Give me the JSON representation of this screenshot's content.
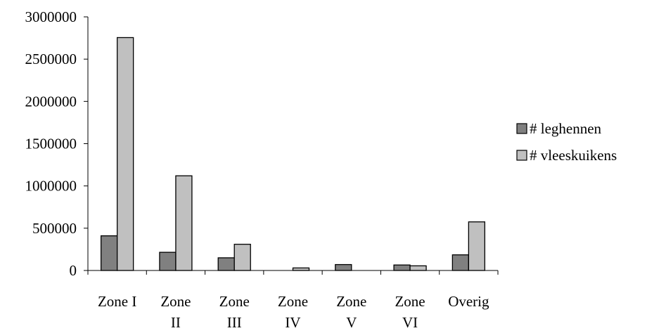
{
  "chart_data": {
    "type": "bar",
    "categories": [
      [
        "Zone I"
      ],
      [
        "Zone",
        "II"
      ],
      [
        "Zone",
        "III"
      ],
      [
        "Zone",
        "IV"
      ],
      [
        "Zone",
        "V"
      ],
      [
        "Zone",
        "VI"
      ],
      [
        "Overig"
      ]
    ],
    "series": [
      {
        "name": "# leghennen",
        "color": "#808080",
        "values": [
          410000,
          215000,
          150000,
          0,
          70000,
          65000,
          185000
        ]
      },
      {
        "name": "# vleeskuikens",
        "color": "#c0c0c0",
        "values": [
          2755000,
          1120000,
          310000,
          30000,
          0,
          55000,
          575000
        ]
      }
    ],
    "ylim": [
      0,
      3000000
    ],
    "yticks": [
      "0",
      "500000",
      "1000000",
      "1500000",
      "2000000",
      "2500000",
      "3000000"
    ],
    "yticks_values": [
      0,
      500000,
      1000000,
      1500000,
      2000000,
      2500000,
      3000000
    ],
    "grid": false,
    "legend": "right"
  }
}
